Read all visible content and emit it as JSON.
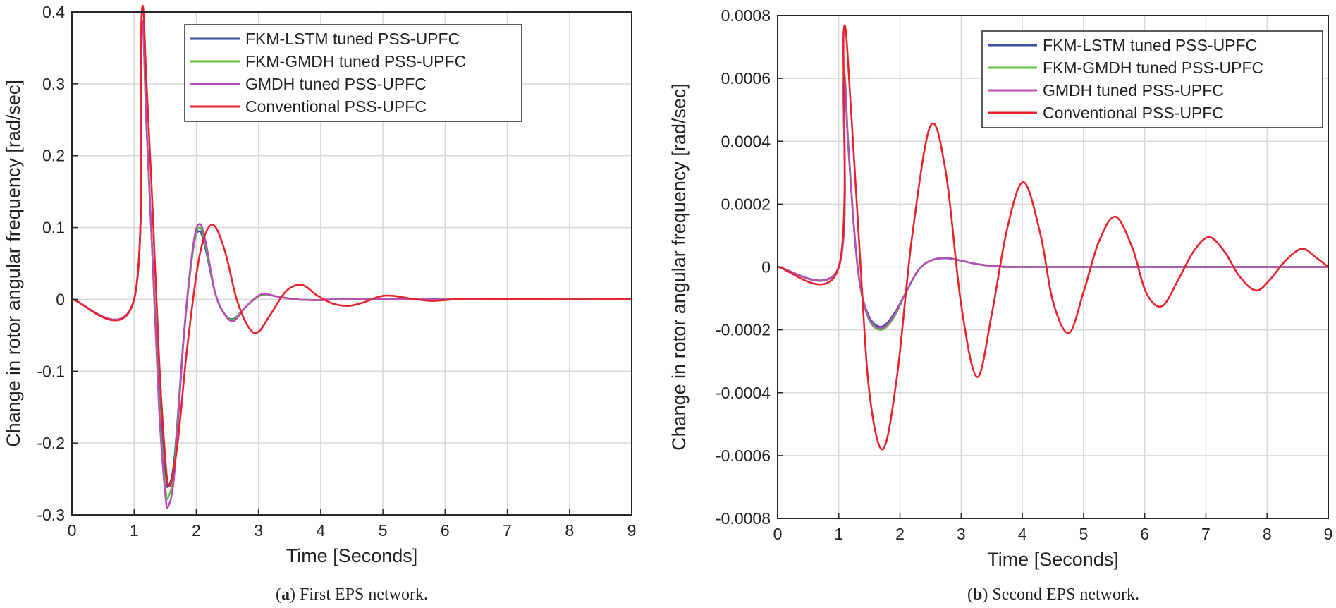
{
  "chart_data": [
    {
      "type": "line",
      "id": "a",
      "caption_letter": "a",
      "caption_text": " First EPS network.",
      "xlabel": "Time [Seconds]",
      "ylabel": "Change in rotor angular frequency [rad/sec]",
      "xlim": [
        0,
        9
      ],
      "ylim": [
        -0.3,
        0.4
      ],
      "xticks": [
        0,
        1,
        2,
        3,
        4,
        5,
        6,
        7,
        8,
        9
      ],
      "xtick_labels": [
        "0",
        "1",
        "2",
        "3",
        "4",
        "5",
        "6",
        "7",
        "8",
        "9"
      ],
      "yticks": [
        -0.3,
        -0.2,
        -0.1,
        0,
        0.1,
        0.2,
        0.3,
        0.4
      ],
      "ytick_labels": [
        "-0.3",
        "-0.2",
        "-0.1",
        "0",
        "0.1",
        "0.2",
        "0.3",
        "0.4"
      ],
      "legend_position": "top-right",
      "series": [
        {
          "name": "FKM-LSTM tuned PSS-UPFC",
          "color": "#3a4f9e",
          "x": [
            0,
            1.0,
            1.12,
            1.2,
            1.3,
            1.4,
            1.5,
            1.55,
            1.65,
            1.8,
            1.95,
            2.05,
            2.15,
            2.3,
            2.45,
            2.6,
            2.8,
            3.05,
            3.3,
            3.6,
            4.0,
            4.5,
            9
          ],
          "y": [
            0,
            0,
            0.38,
            0.24,
            0.05,
            -0.13,
            -0.24,
            -0.26,
            -0.22,
            -0.05,
            0.07,
            0.095,
            0.07,
            0.01,
            -0.02,
            -0.027,
            -0.01,
            0.006,
            0.004,
            0.0,
            -0.001,
            0.0,
            0
          ]
        },
        {
          "name": "FKM-GMDH tuned PSS-UPFC",
          "color": "#5cc43c",
          "x": [
            0,
            1.0,
            1.12,
            1.2,
            1.3,
            1.4,
            1.5,
            1.55,
            1.65,
            1.8,
            1.95,
            2.05,
            2.15,
            2.3,
            2.45,
            2.6,
            2.8,
            3.05,
            3.3,
            3.6,
            4.0,
            4.5,
            9
          ],
          "y": [
            0,
            0,
            0.38,
            0.24,
            0.05,
            -0.14,
            -0.26,
            -0.275,
            -0.23,
            -0.05,
            0.07,
            0.1,
            0.075,
            0.01,
            -0.02,
            -0.028,
            -0.01,
            0.006,
            0.004,
            0.0,
            -0.001,
            0.0,
            0
          ]
        },
        {
          "name": "GMDH tuned PSS-UPFC",
          "color": "#b84db8",
          "x": [
            0,
            1.0,
            1.12,
            1.2,
            1.3,
            1.4,
            1.5,
            1.55,
            1.65,
            1.8,
            1.95,
            2.05,
            2.15,
            2.3,
            2.45,
            2.6,
            2.8,
            3.05,
            3.3,
            3.6,
            4.0,
            4.5,
            9
          ],
          "y": [
            0,
            0,
            0.38,
            0.24,
            0.05,
            -0.15,
            -0.27,
            -0.288,
            -0.24,
            -0.05,
            0.075,
            0.105,
            0.08,
            0.01,
            -0.02,
            -0.03,
            -0.01,
            0.007,
            0.004,
            0.0,
            -0.001,
            0.0,
            0
          ]
        },
        {
          "name": "Conventional PSS-UPFC",
          "color": "#e8212a",
          "x": [
            0,
            1.0,
            1.12,
            1.2,
            1.3,
            1.4,
            1.5,
            1.57,
            1.7,
            1.85,
            2.05,
            2.25,
            2.45,
            2.65,
            2.85,
            3.0,
            3.2,
            3.45,
            3.7,
            3.95,
            4.2,
            4.45,
            4.7,
            4.95,
            5.15,
            5.45,
            5.75,
            6.0,
            6.3,
            6.6,
            7.0,
            9
          ],
          "y": [
            0,
            0,
            0.395,
            0.3,
            0.12,
            -0.08,
            -0.22,
            -0.26,
            -0.2,
            -0.07,
            0.06,
            0.104,
            0.07,
            0.0,
            -0.04,
            -0.045,
            -0.02,
            0.012,
            0.02,
            0.005,
            -0.006,
            -0.009,
            -0.004,
            0.004,
            0.005,
            0.001,
            -0.002,
            -0.001,
            0.001,
            0.001,
            0,
            0
          ]
        }
      ]
    },
    {
      "type": "line",
      "id": "b",
      "caption_letter": "b",
      "caption_text": " Second EPS network.",
      "xlabel": "Time [Seconds]",
      "ylabel": "Change in rotor angular frequency [rad/sec]",
      "xlim": [
        0,
        9
      ],
      "ylim": [
        -0.0008,
        0.0008
      ],
      "xticks": [
        0,
        1,
        2,
        3,
        4,
        5,
        6,
        7,
        8,
        9
      ],
      "xtick_labels": [
        "0",
        "1",
        "2",
        "3",
        "4",
        "5",
        "6",
        "7",
        "8",
        "9"
      ],
      "yticks": [
        -0.0008,
        -0.0006,
        -0.0004,
        -0.0002,
        0,
        0.0002,
        0.0004,
        0.0006,
        0.0008
      ],
      "ytick_labels": [
        "-0.0008",
        "-0.0006",
        "-0.0004",
        "-0.0002",
        "0",
        "0.0002",
        "0.0004",
        "0.0006",
        "0.0008"
      ],
      "legend_position": "top-right",
      "series": [
        {
          "name": "FKM-LSTM tuned PSS-UPFC",
          "color": "#3a4f9e",
          "x": [
            0,
            1.0,
            1.08,
            1.15,
            1.25,
            1.35,
            1.5,
            1.7,
            1.9,
            2.1,
            2.3,
            2.5,
            2.75,
            3.0,
            3.3,
            3.7,
            4.2,
            9
          ],
          "y": [
            0,
            0,
            0.00058,
            0.0004,
            0.00012,
            -6e-05,
            -0.00016,
            -0.00019,
            -0.00015,
            -8e-05,
            -1e-05,
            2e-05,
            2.8e-05,
            2e-05,
            8e-06,
            1e-06,
            0,
            0
          ]
        },
        {
          "name": "FKM-GMDH tuned PSS-UPFC",
          "color": "#5cc43c",
          "x": [
            0,
            1.0,
            1.08,
            1.15,
            1.25,
            1.35,
            1.5,
            1.7,
            1.9,
            2.1,
            2.3,
            2.5,
            2.75,
            3.0,
            3.3,
            3.7,
            4.2,
            9
          ],
          "y": [
            0,
            0,
            0.0006,
            0.00041,
            0.00012,
            -6e-05,
            -0.00017,
            -0.0002,
            -0.00016,
            -8e-05,
            -1e-05,
            2e-05,
            3e-05,
            2e-05,
            8e-06,
            1e-06,
            0,
            0
          ]
        },
        {
          "name": "GMDH tuned PSS-UPFC",
          "color": "#b84db8",
          "x": [
            0,
            1.0,
            1.08,
            1.15,
            1.25,
            1.35,
            1.5,
            1.7,
            1.9,
            2.1,
            2.3,
            2.5,
            2.75,
            3.0,
            3.3,
            3.7,
            4.2,
            9
          ],
          "y": [
            0,
            0,
            0.00059,
            0.0004,
            0.00012,
            -6e-05,
            -0.000165,
            -0.000195,
            -0.000155,
            -8e-05,
            -1e-05,
            2e-05,
            2.9e-05,
            2e-05,
            8e-06,
            1e-06,
            0,
            0
          ]
        },
        {
          "name": "Conventional PSS-UPFC",
          "color": "#e8212a",
          "x": [
            0,
            1.0,
            1.08,
            1.2,
            1.35,
            1.5,
            1.72,
            1.95,
            2.2,
            2.5,
            2.75,
            3.0,
            3.26,
            3.5,
            3.75,
            4.02,
            4.3,
            4.5,
            4.76,
            5.0,
            5.25,
            5.52,
            5.8,
            6.02,
            6.28,
            6.55,
            6.8,
            7.05,
            7.3,
            7.55,
            7.82,
            8.05,
            8.3,
            8.57,
            8.8,
            9.0
          ],
          "y": [
            0,
            0,
            0.00075,
            0.0005,
            2e-05,
            -0.0004,
            -0.00058,
            -0.00035,
            0.0001,
            0.00045,
            0.0003,
            -0.00012,
            -0.00035,
            -0.00015,
            0.00012,
            0.00027,
            0.0001,
            -0.00011,
            -0.00021,
            -8e-05,
            8e-05,
            0.00016,
            6e-05,
            -8e-05,
            -0.000125,
            -4e-05,
            5e-05,
            9.5e-05,
            5e-05,
            -3e-05,
            -7.5e-05,
            -4e-05,
            2e-05,
            5.8e-05,
            3e-05,
            0
          ]
        }
      ]
    }
  ]
}
